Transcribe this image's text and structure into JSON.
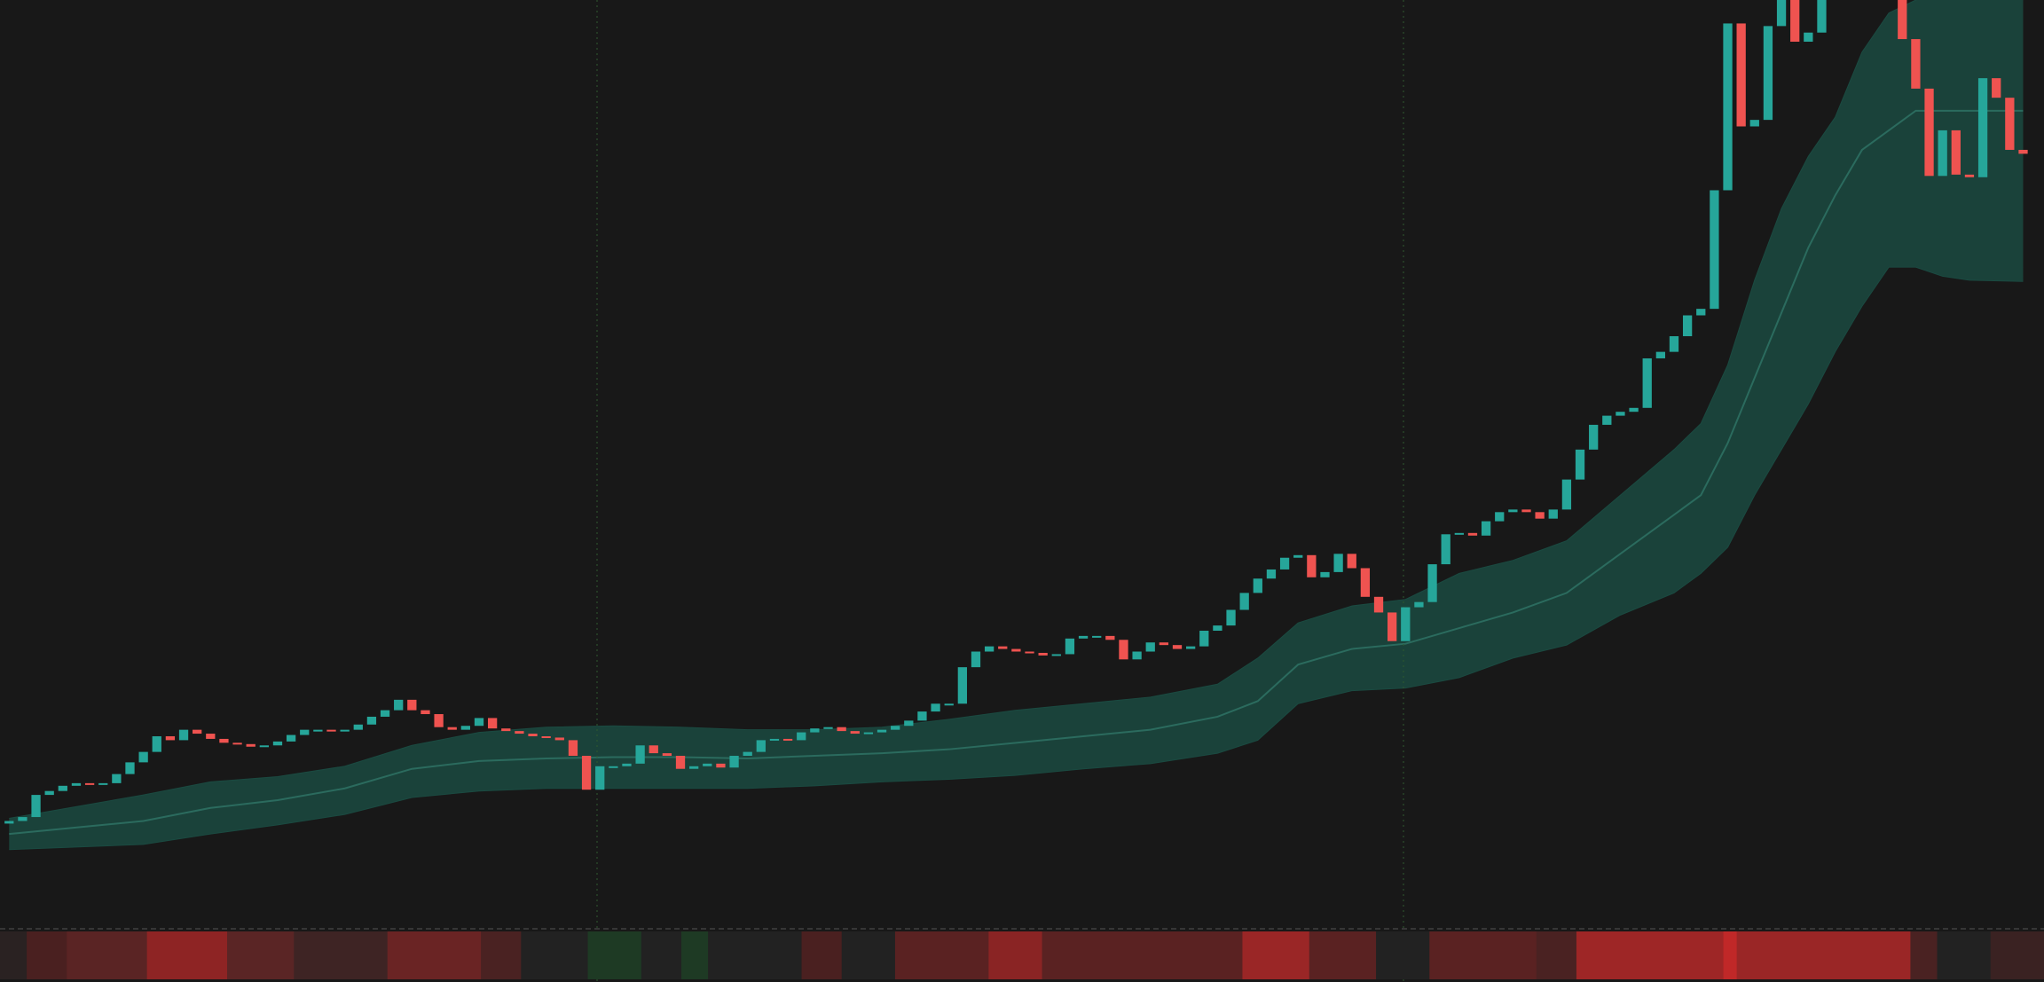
{
  "chart_data": {
    "type": "candlestick",
    "up_color": "#26a69a",
    "down_color": "#ef5350",
    "ylim": [
      0,
      710
    ],
    "open": [
      78,
      80,
      83,
      100,
      103,
      107,
      109,
      108,
      109,
      116,
      125,
      133,
      145,
      142,
      150,
      147,
      143,
      140,
      139,
      137,
      138,
      141,
      146,
      150,
      150,
      149,
      150,
      154,
      160,
      165,
      173,
      165,
      162,
      152,
      150,
      153,
      159,
      151,
      149,
      147,
      145,
      144,
      142,
      130,
      104,
      122,
      122,
      124,
      138,
      132,
      130,
      120,
      122,
      124,
      121,
      130,
      133,
      142,
      143,
      142,
      148,
      151,
      152,
      149,
      147,
      148,
      150,
      153,
      157,
      164,
      170,
      170,
      198,
      210,
      214,
      212,
      210,
      209,
      207,
      208,
      220,
      222,
      222,
      219,
      204,
      210,
      217,
      215,
      212,
      214,
      226,
      230,
      242,
      255,
      266,
      273,
      282,
      284,
      267,
      271,
      285,
      274,
      252,
      240,
      218,
      244,
      248,
      277,
      300,
      301,
      299,
      310,
      317,
      319,
      317,
      312,
      319,
      342,
      365,
      384,
      391,
      394,
      397,
      435,
      440,
      452,
      468,
      473,
      564,
      692,
      613,
      618,
      690,
      715,
      678,
      685,
      715,
      750,
      770,
      750,
      720,
      720,
      680,
      642,
      575,
      610,
      576,
      574,
      650,
      635,
      595
    ],
    "close": [
      80,
      83,
      100,
      103,
      107,
      109,
      108,
      109,
      116,
      125,
      133,
      145,
      142,
      150,
      147,
      143,
      140,
      139,
      137,
      138,
      141,
      146,
      150,
      150,
      149,
      150,
      154,
      160,
      165,
      173,
      165,
      162,
      152,
      150,
      153,
      159,
      151,
      149,
      147,
      145,
      144,
      142,
      130,
      104,
      122,
      122,
      124,
      138,
      132,
      130,
      120,
      122,
      124,
      121,
      130,
      133,
      142,
      143,
      142,
      148,
      151,
      152,
      149,
      147,
      148,
      150,
      153,
      157,
      164,
      170,
      170,
      198,
      210,
      214,
      212,
      210,
      209,
      207,
      208,
      220,
      222,
      222,
      219,
      204,
      210,
      217,
      215,
      212,
      214,
      226,
      230,
      242,
      255,
      266,
      273,
      282,
      284,
      267,
      271,
      285,
      274,
      252,
      240,
      218,
      244,
      248,
      277,
      300,
      301,
      299,
      310,
      317,
      319,
      317,
      312,
      319,
      342,
      365,
      384,
      391,
      394,
      397,
      435,
      440,
      452,
      468,
      473,
      564,
      692,
      613,
      618,
      690,
      715,
      678,
      685,
      715,
      750,
      770,
      750,
      720,
      720,
      680,
      642,
      575,
      610,
      576,
      574,
      650,
      635,
      595,
      592
    ],
    "band": {
      "color": "#1b4a41",
      "line_color": "#2b6b5e",
      "x": [
        0,
        10,
        15,
        20,
        25,
        30,
        35,
        40,
        45,
        50,
        55,
        60,
        65,
        70,
        75,
        80,
        85,
        90,
        93,
        96,
        100,
        104,
        108,
        112,
        116,
        120,
        124,
        126,
        128,
        130,
        132,
        134,
        136,
        138,
        140,
        142,
        144,
        146,
        150
      ],
      "upper": [
        82,
        100,
        110,
        114,
        122,
        138,
        148,
        152,
        153,
        152,
        150,
        150,
        152,
        158,
        165,
        170,
        175,
        185,
        205,
        232,
        245,
        250,
        270,
        280,
        295,
        330,
        365,
        385,
        430,
        495,
        550,
        590,
        620,
        670,
        700,
        710,
        715,
        720,
        720
      ],
      "lower": [
        58,
        62,
        70,
        77,
        85,
        98,
        103,
        105,
        105,
        105,
        105,
        107,
        110,
        112,
        115,
        120,
        124,
        132,
        142,
        170,
        180,
        182,
        190,
        205,
        215,
        238,
        255,
        270,
        290,
        330,
        365,
        400,
        440,
        475,
        505,
        505,
        498,
        495,
        494
      ],
      "mid": [
        70,
        80,
        90,
        96,
        105,
        120,
        126,
        128,
        129,
        129,
        128,
        130,
        132,
        135,
        140,
        145,
        150,
        160,
        172,
        200,
        212,
        216,
        228,
        240,
        255,
        285,
        315,
        330,
        370,
        420,
        470,
        520,
        560,
        595,
        610,
        625,
        625,
        625,
        625
      ]
    },
    "strip": [
      {
        "color": "#2a2222",
        "span": 2
      },
      {
        "color": "#4a2020",
        "span": 3
      },
      {
        "color": "#5a2424",
        "span": 6
      },
      {
        "color": "#8e2424",
        "span": 6
      },
      {
        "color": "#5a2525",
        "span": 5
      },
      {
        "color": "#3e2424",
        "span": 7
      },
      {
        "color": "#6a2424",
        "span": 7
      },
      {
        "color": "#4a2222",
        "span": 3
      },
      {
        "color": "#222222",
        "span": 5
      },
      {
        "color": "#1e3a24",
        "span": 4
      },
      {
        "color": "#222222",
        "span": 3
      },
      {
        "color": "#1e3a24",
        "span": 2
      },
      {
        "color": "#222222",
        "span": 2
      },
      {
        "color": "#222222",
        "span": 5
      },
      {
        "color": "#4a2020",
        "span": 3
      },
      {
        "color": "#222222",
        "span": 4
      },
      {
        "color": "#5a2222",
        "span": 7
      },
      {
        "color": "#8a2424",
        "span": 4
      },
      {
        "color": "#5a2222",
        "span": 15
      },
      {
        "color": "#9a2626",
        "span": 5
      },
      {
        "color": "#5a2222",
        "span": 5
      },
      {
        "color": "#222222",
        "span": 4
      },
      {
        "color": "#5a2222",
        "span": 8
      },
      {
        "color": "#4a2222",
        "span": 3
      },
      {
        "color": "#9e2626",
        "span": 11
      },
      {
        "color": "#c02828",
        "span": 1
      },
      {
        "color": "#9a2626",
        "span": 13
      },
      {
        "color": "#4a2222",
        "span": 2
      },
      {
        "color": "#222222",
        "span": 4
      },
      {
        "color": "#3a2222",
        "span": 4
      }
    ]
  }
}
